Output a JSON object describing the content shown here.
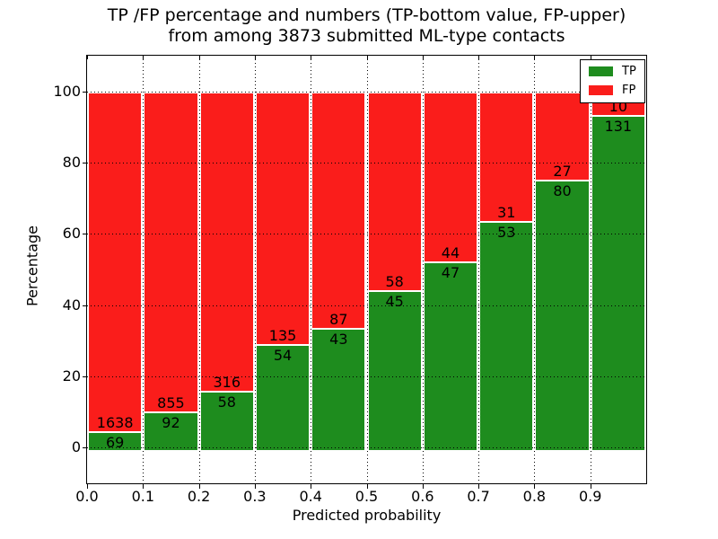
{
  "title": {
    "line1": "TP /FP percentage and numbers (TP-bottom value, FP-upper)",
    "line2": "from among 3873 submitted ML-type contacts"
  },
  "axes": {
    "xlabel": "Predicted probability",
    "ylabel": "Percentage"
  },
  "legend": {
    "position": "upper right",
    "items": [
      {
        "label": "TP",
        "color": "#1e8c1e"
      },
      {
        "label": "FP",
        "color": "#fa1d1b"
      }
    ]
  },
  "chart_data": {
    "type": "bar",
    "subtype": "stacked-percentage",
    "title": "TP /FP percentage and numbers (TP-bottom value, FP-upper)\nfrom among 3873 submitted ML-type contacts",
    "xlabel": "Predicted probability",
    "ylabel": "Percentage",
    "xlim": [
      0.0,
      1.0
    ],
    "ylim": [
      -10,
      110
    ],
    "xticks": [
      "0.0",
      "0.1",
      "0.2",
      "0.3",
      "0.4",
      "0.5",
      "0.6",
      "0.7",
      "0.8",
      "0.9"
    ],
    "yticks": [
      0,
      20,
      40,
      60,
      80,
      100
    ],
    "grid": true,
    "bin_width": 0.1,
    "bin_starts": [
      0.0,
      0.1,
      0.2,
      0.3,
      0.4,
      0.5,
      0.6,
      0.7,
      0.8,
      0.9
    ],
    "total_contacts": 3873,
    "bar_unit": "percent of bin total; each stack sums to 100, green TP on bottom, red FP on top",
    "series": [
      {
        "name": "TP",
        "color": "#1e8c1e",
        "counts": [
          69,
          92,
          58,
          54,
          43,
          45,
          47,
          53,
          80,
          131
        ]
      },
      {
        "name": "FP",
        "color": "#fa1d1b",
        "counts": [
          1638,
          855,
          316,
          135,
          87,
          58,
          44,
          31,
          27,
          10
        ]
      }
    ],
    "tp_percent_per_bin": [
      4.04,
      9.71,
      15.51,
      28.57,
      33.08,
      43.69,
      51.65,
      63.1,
      74.77,
      92.91
    ],
    "legend_position": "upper right"
  }
}
